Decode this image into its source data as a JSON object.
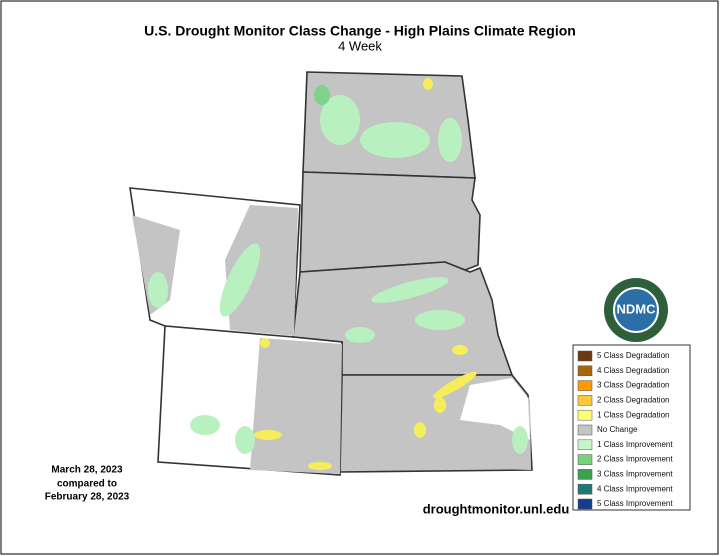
{
  "title": "U.S. Drought Monitor Class Change - High Plains Climate Region",
  "subtitle": "4 Week",
  "date": {
    "line1": "March 28, 2023",
    "line2": "compared to",
    "line3": "February 28, 2023"
  },
  "url": "droughtmonitor.unl.edu",
  "logo": "NDMC",
  "legend": [
    {
      "label": "5 Class Degradation",
      "color": "#6b3a10"
    },
    {
      "label": "4 Class Degradation",
      "color": "#a8650f"
    },
    {
      "label": "3 Class Degradation",
      "color": "#ff9a00"
    },
    {
      "label": "2 Class Degradation",
      "color": "#ffc83c"
    },
    {
      "label": "1 Class Degradation",
      "color": "#ffff73"
    },
    {
      "label": "No Change",
      "color": "#c4c4c4"
    },
    {
      "label": "1 Class Improvement",
      "color": "#c8f5c8"
    },
    {
      "label": "2 Class Improvement",
      "color": "#78d278"
    },
    {
      "label": "3 Class Improvement",
      "color": "#3ca050"
    },
    {
      "label": "4 Class Improvement",
      "color": "#1e7878"
    },
    {
      "label": "5 Class Improvement",
      "color": "#143c8c"
    }
  ]
}
